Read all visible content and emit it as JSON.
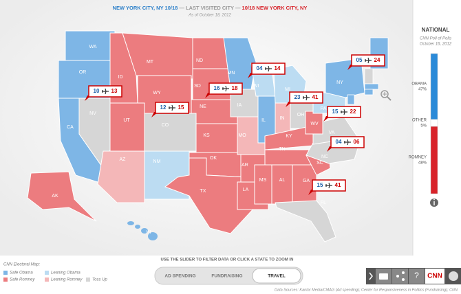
{
  "header": {
    "current": "NEW YORK CITY, NY 10/18",
    "separator": " — LAST VISITED CITY — ",
    "last": "10/18 NEW YORK CITY, NY",
    "date": "As of October 18, 2012"
  },
  "map": {
    "states": [
      {
        "abbr": "WA",
        "color": "#7eb6e6"
      },
      {
        "abbr": "OR",
        "color": "#7eb6e6"
      },
      {
        "abbr": "CA",
        "color": "#7eb6e6"
      },
      {
        "abbr": "NV",
        "color": "#d6d6d6"
      },
      {
        "abbr": "ID",
        "color": "#ec7c7f"
      },
      {
        "abbr": "MT",
        "color": "#ec7c7f"
      },
      {
        "abbr": "WY",
        "color": "#ec7c7f"
      },
      {
        "abbr": "UT",
        "color": "#ec7c7f"
      },
      {
        "abbr": "CO",
        "color": "#d6d6d6"
      },
      {
        "abbr": "AZ",
        "color": "#f4b7b8"
      },
      {
        "abbr": "NM",
        "color": "#bcdcf2"
      },
      {
        "abbr": "ND",
        "color": "#ec7c7f"
      },
      {
        "abbr": "SD",
        "color": "#ec7c7f"
      },
      {
        "abbr": "NE",
        "color": "#ec7c7f"
      },
      {
        "abbr": "KS",
        "color": "#ec7c7f"
      },
      {
        "abbr": "OK",
        "color": "#ec7c7f"
      },
      {
        "abbr": "TX",
        "color": "#ec7c7f"
      },
      {
        "abbr": "MN",
        "color": "#7eb6e6"
      },
      {
        "abbr": "IA",
        "color": "#d6d6d6"
      },
      {
        "abbr": "MO",
        "color": "#f4b7b8"
      },
      {
        "abbr": "AR",
        "color": "#ec7c7f"
      },
      {
        "abbr": "LA",
        "color": "#ec7c7f"
      },
      {
        "abbr": "WI",
        "color": "#bcdcf2"
      },
      {
        "abbr": "IL",
        "color": "#7eb6e6"
      },
      {
        "abbr": "MI",
        "color": "#bcdcf2"
      },
      {
        "abbr": "IN",
        "color": "#f4b7b8"
      },
      {
        "abbr": "OH",
        "color": "#d6d6d6"
      },
      {
        "abbr": "KY",
        "color": "#ec7c7f"
      },
      {
        "abbr": "TN",
        "color": "#ec7c7f"
      },
      {
        "abbr": "MS",
        "color": "#ec7c7f"
      },
      {
        "abbr": "AL",
        "color": "#ec7c7f"
      },
      {
        "abbr": "GA",
        "color": "#ec7c7f"
      },
      {
        "abbr": "SC",
        "color": "#ec7c7f"
      },
      {
        "abbr": "NC",
        "color": "#d6d6d6"
      },
      {
        "abbr": "VA",
        "color": "#d6d6d6"
      },
      {
        "abbr": "WV",
        "color": "#ec7c7f"
      },
      {
        "abbr": "PA",
        "color": "#bcdcf2"
      },
      {
        "abbr": "NY",
        "color": "#7eb6e6"
      },
      {
        "abbr": "FL",
        "color": "#d6d6d6"
      },
      {
        "abbr": "AK",
        "color": "#ec7c7f"
      },
      {
        "abbr": "HI",
        "color": "#7eb6e6"
      }
    ],
    "visits": [
      {
        "left": "10",
        "right": "13"
      },
      {
        "left": "12",
        "right": "15"
      },
      {
        "left": "16",
        "right": "18"
      },
      {
        "left": "04",
        "right": "14"
      },
      {
        "left": "23",
        "right": "41"
      },
      {
        "left": "05",
        "right": "24"
      },
      {
        "left": "15",
        "right": "22"
      },
      {
        "left": "04",
        "right": "06"
      },
      {
        "left": "15",
        "right": "41"
      }
    ]
  },
  "poll": {
    "title": "NATIONAL",
    "subtitle": "CNN Poll of Polls",
    "date": "October 16, 2012",
    "candidates": [
      {
        "name": "OBAMA",
        "value": 47,
        "label": "47%",
        "color": "#2b8ad8"
      },
      {
        "name": "OTHER",
        "value": 5,
        "label": "5%",
        "color": "#ffffff"
      },
      {
        "name": "ROMNEY",
        "value": 48,
        "label": "48%",
        "color": "#d8232a"
      }
    ]
  },
  "legend": {
    "title": "CNN Electoral Map:",
    "items": [
      {
        "label": "Safe Obama",
        "color": "#7eb6e6"
      },
      {
        "label": "Leaning Obama",
        "color": "#bcdcf2"
      },
      {
        "label": "Safe Romney",
        "color": "#ec7c7f"
      },
      {
        "label": "Leaning Romney",
        "color": "#f4b7b8"
      },
      {
        "label": "Toss Up",
        "color": "#d6d6d6"
      }
    ]
  },
  "instruction": "USE THE SLIDER TO FILTER DATA OR CLICK A STATE TO ZOOM IN",
  "tabs": [
    {
      "label": "AD SPENDING",
      "active": false
    },
    {
      "label": "FUNDRAISING",
      "active": false
    },
    {
      "label": "TRAVEL",
      "active": true
    }
  ],
  "toolbar": {
    "help": "?",
    "logo": "CNN"
  },
  "sources": "Data Sources: Kantar Media/CMAG (Ad spending); Center for Responsiveness in Politics (Fundraising); CNN"
}
